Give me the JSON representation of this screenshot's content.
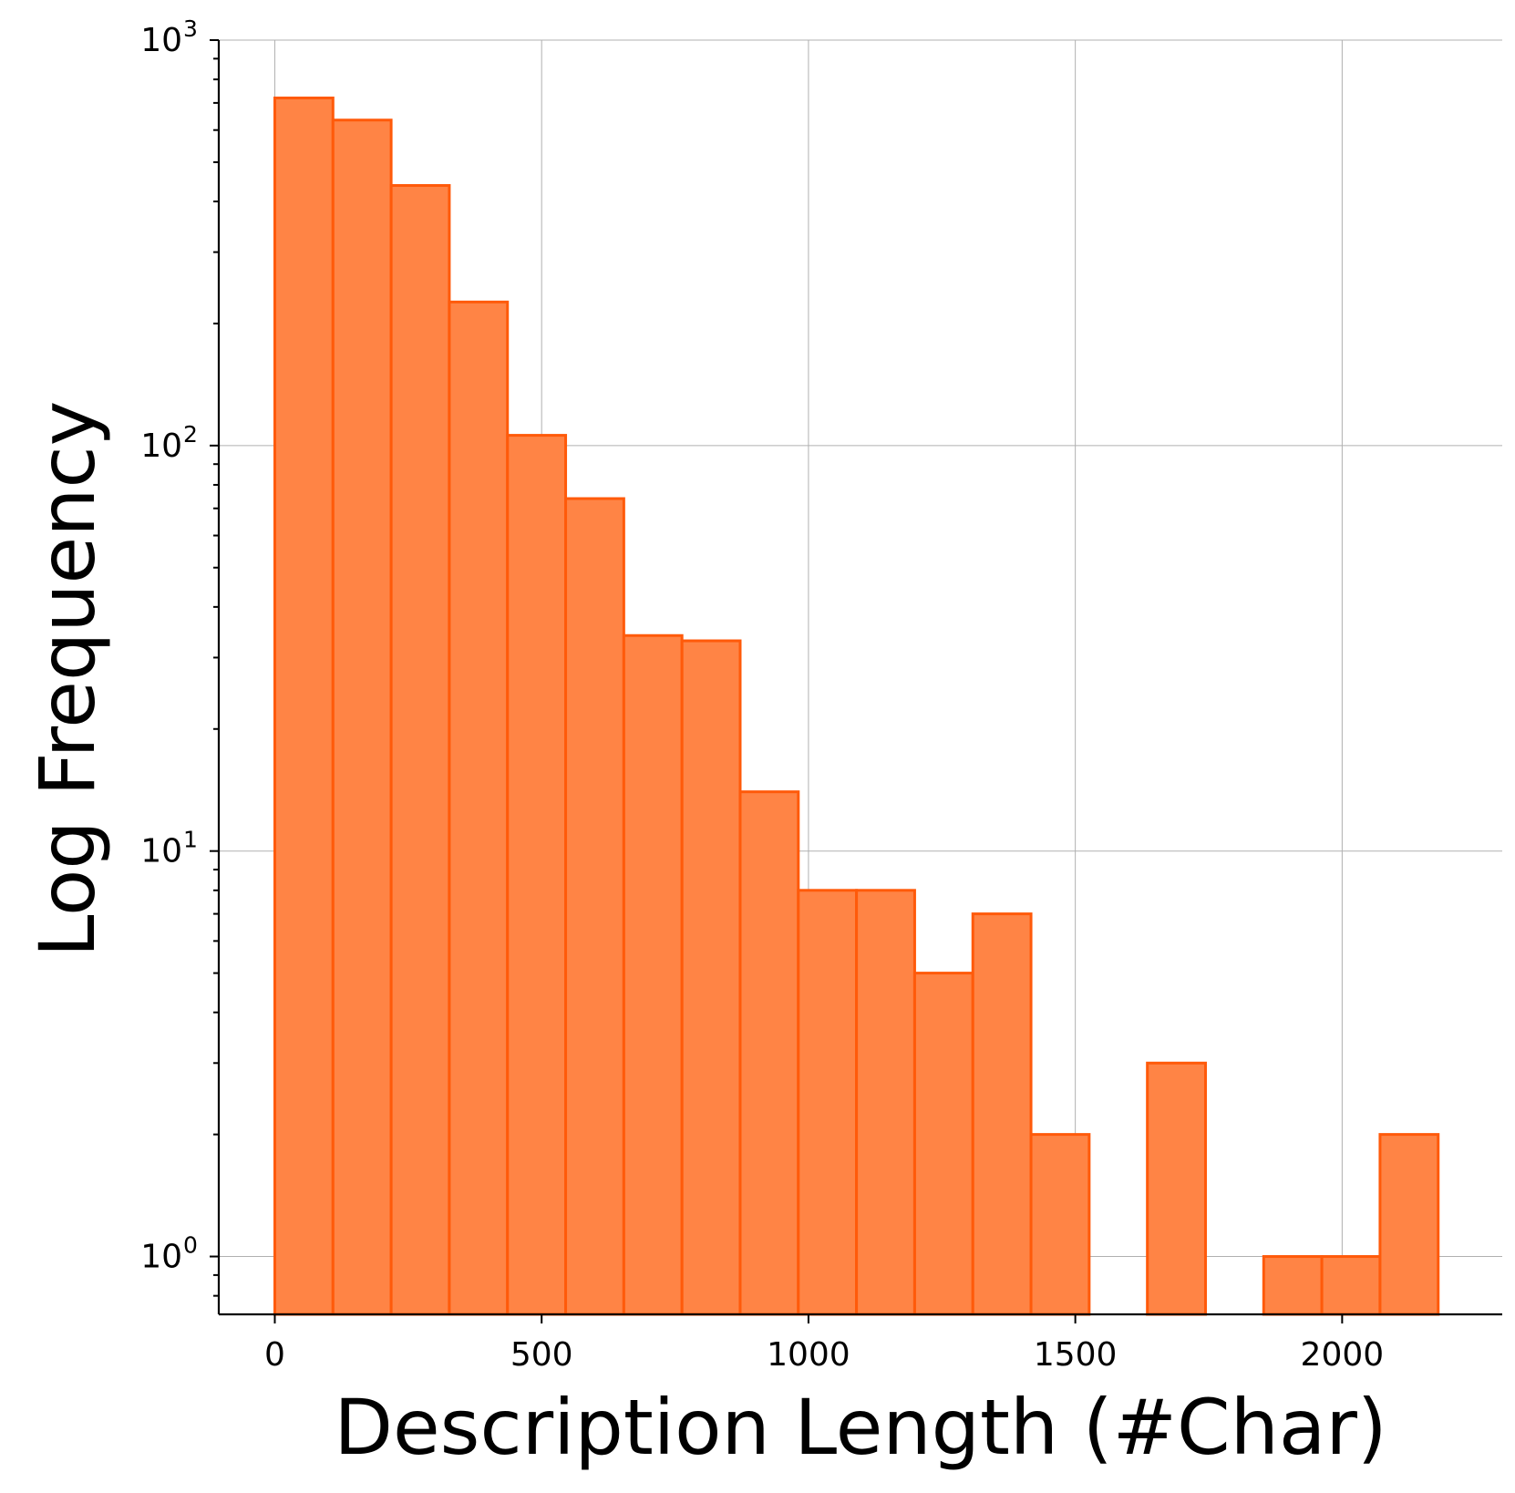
{
  "chart_data": {
    "type": "bar",
    "xlabel": "Description Length (#Char)",
    "ylabel": "Log Frequency",
    "yscale": "log",
    "xlim": [
      -105,
      2300
    ],
    "ylim": [
      0.72,
      1000
    ],
    "grid": true,
    "x_ticks": [
      {
        "value": 0,
        "label": "0"
      },
      {
        "value": 500,
        "label": "500"
      },
      {
        "value": 1000,
        "label": "1000"
      },
      {
        "value": 1500,
        "label": "1500"
      },
      {
        "value": 2000,
        "label": "2000"
      }
    ],
    "y_ticks": [
      {
        "value": 1,
        "base": "10",
        "exp": "0"
      },
      {
        "value": 10,
        "base": "10",
        "exp": "1"
      },
      {
        "value": 100,
        "base": "10",
        "exp": "2"
      },
      {
        "value": 1000,
        "base": "10",
        "exp": "3"
      }
    ],
    "bin_edges": [
      0,
      109,
      218,
      327,
      436,
      545,
      654,
      763,
      872,
      981,
      1090,
      1199,
      1308,
      1417,
      1526,
      1635,
      1744,
      1853,
      1962,
      2071,
      2180
    ],
    "values": [
      720,
      635,
      438,
      226,
      106,
      74,
      34,
      33,
      14,
      8,
      8,
      5,
      7,
      2,
      0,
      3,
      0,
      1,
      1,
      2
    ],
    "colors": {
      "fill": "#ff8445",
      "edge": "#ff5a0a"
    }
  }
}
